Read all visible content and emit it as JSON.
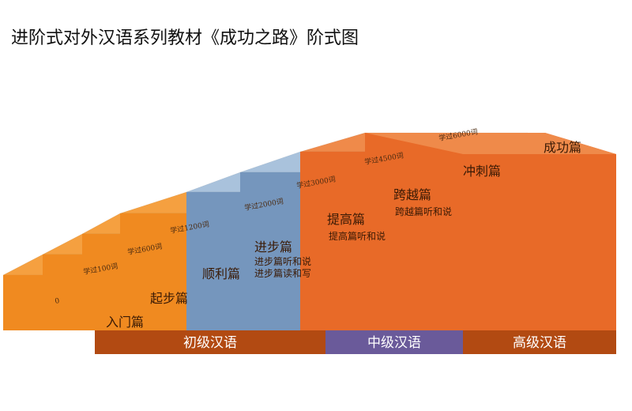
{
  "title": "进阶式对外汉语系列教材《成功之路》阶式图",
  "steps": [
    {
      "name": "入门篇",
      "progress": "0",
      "subs": []
    },
    {
      "name": "起步篇",
      "progress": "学过100词",
      "subs": []
    },
    {
      "name": "顺利篇",
      "progress": "学过600词",
      "subs": []
    },
    {
      "name": "进步篇",
      "progress": "学过1200词",
      "subs": [
        "进步篇听和说",
        "进步篇读和写"
      ]
    },
    {
      "name": "提高篇",
      "progress": "学过2000词",
      "subs": [
        "提高篇听和说"
      ]
    },
    {
      "name": "跨越篇",
      "progress": "学过3000词",
      "subs": [
        "跨越篇听和说"
      ]
    },
    {
      "name": "冲刺篇",
      "progress": "学过4500词",
      "subs": []
    },
    {
      "name": "成功篇",
      "progress": "学过6000词",
      "subs": []
    }
  ],
  "levels": [
    {
      "label": "初级汉语",
      "color": "#b24a12"
    },
    {
      "label": "中级汉语",
      "color": "#6a5a9a"
    },
    {
      "label": "高级汉语",
      "color": "#b24a12"
    }
  ],
  "colors": {
    "orange_top": "#f5a040",
    "orange_front": "#f08a20",
    "blue_top": "#a9c2dc",
    "blue_front": "#7596bd",
    "dark_orange_top": "#ef8a4a",
    "dark_orange_front": "#e86a28"
  }
}
